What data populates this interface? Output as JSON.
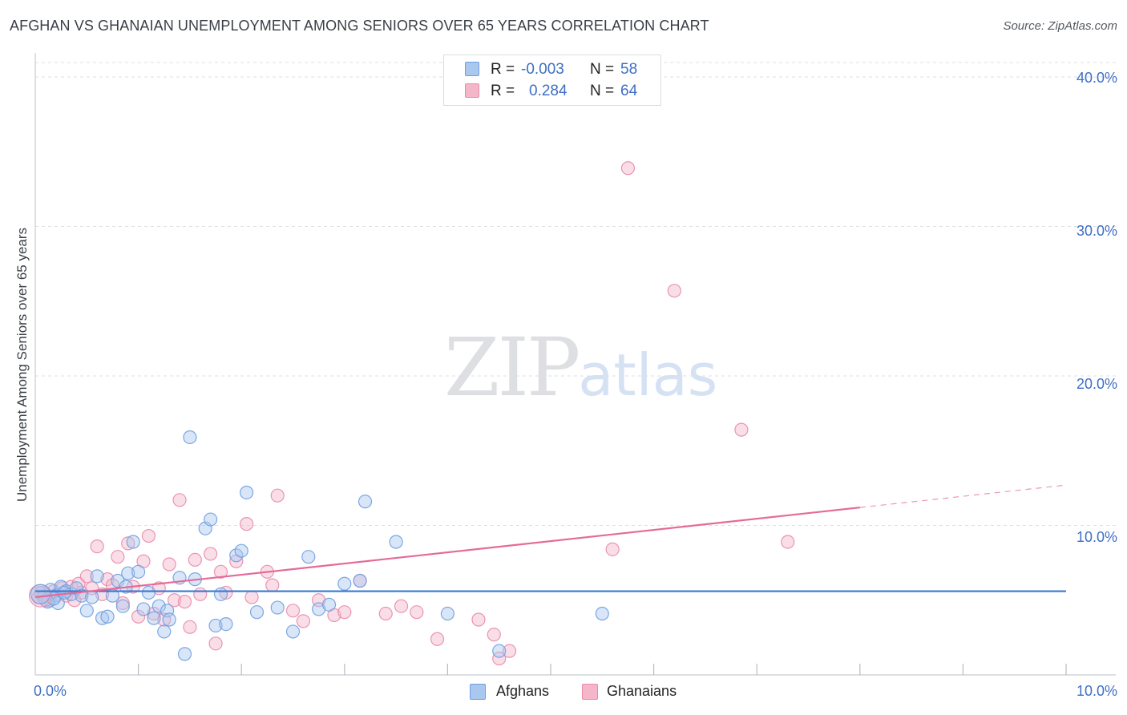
{
  "header": {
    "title": "AFGHAN VS GHANAIAN UNEMPLOYMENT AMONG SENIORS OVER 65 YEARS CORRELATION CHART",
    "source": "Source: ZipAtlas.com"
  },
  "legend": {
    "rows": [
      {
        "r_label": "R =",
        "r_value": "-0.003",
        "n_label": "N =",
        "n_value": "58"
      },
      {
        "r_label": "R =",
        "r_value": "0.284",
        "n_label": "N =",
        "n_value": "64"
      }
    ]
  },
  "watermark": {
    "zip": "ZIP",
    "atlas": "atlas"
  },
  "colors": {
    "afghan_fill": "#a9c7ef",
    "afghan_stroke": "#6f9ee0",
    "afghan_line": "#3a78d0",
    "ghana_fill": "#f5b6ca",
    "ghana_stroke": "#e98aab",
    "ghana_line": "#e56a98",
    "tick_text": "#3f6fc4",
    "grid": "#dcdfe3"
  },
  "chart_data": {
    "type": "scatter",
    "title": "AFGHAN VS GHANAIAN UNEMPLOYMENT AMONG SENIORS OVER 65 YEARS CORRELATION CHART",
    "xlabel": "",
    "ylabel": "Unemployment Among Seniors over 65 years",
    "xlim": [
      0,
      10
    ],
    "ylim": [
      0,
      40
    ],
    "x_tick_labels": [
      "0.0%",
      "10.0%"
    ],
    "y_ticks": [
      10,
      20,
      30,
      40
    ],
    "y_tick_labels": [
      "10.0%",
      "20.0%",
      "30.0%",
      "40.0%"
    ],
    "legend_position": "top-center",
    "series": [
      {
        "name": "Afghans",
        "R": -0.003,
        "N": 58,
        "trend": {
          "x0": 0.0,
          "y0": 5.6,
          "x1": 10.0,
          "y1": 5.6,
          "dashed_from": null
        },
        "points": [
          [
            0.05,
            5.5
          ],
          [
            0.08,
            5.2
          ],
          [
            0.1,
            5.0
          ],
          [
            0.15,
            5.7
          ],
          [
            0.2,
            5.3
          ],
          [
            0.22,
            4.8
          ],
          [
            0.25,
            5.9
          ],
          [
            0.3,
            5.6
          ],
          [
            0.35,
            5.4
          ],
          [
            0.4,
            5.8
          ],
          [
            0.45,
            5.3
          ],
          [
            0.5,
            4.3
          ],
          [
            0.55,
            5.2
          ],
          [
            0.6,
            6.6
          ],
          [
            0.65,
            3.8
          ],
          [
            0.7,
            3.9
          ],
          [
            0.75,
            5.3
          ],
          [
            0.8,
            6.3
          ],
          [
            0.85,
            4.6
          ],
          [
            0.88,
            5.9
          ],
          [
            0.9,
            6.8
          ],
          [
            0.95,
            8.9
          ],
          [
            1.0,
            6.9
          ],
          [
            1.05,
            4.4
          ],
          [
            1.1,
            5.5
          ],
          [
            1.15,
            3.8
          ],
          [
            1.2,
            4.6
          ],
          [
            1.25,
            2.9
          ],
          [
            1.28,
            4.3
          ],
          [
            1.3,
            3.7
          ],
          [
            1.4,
            6.5
          ],
          [
            1.45,
            1.4
          ],
          [
            1.5,
            15.9
          ],
          [
            1.55,
            6.4
          ],
          [
            1.65,
            9.8
          ],
          [
            1.7,
            10.4
          ],
          [
            1.75,
            3.3
          ],
          [
            1.8,
            5.4
          ],
          [
            1.85,
            3.4
          ],
          [
            1.95,
            8.0
          ],
          [
            2.0,
            8.3
          ],
          [
            2.05,
            12.2
          ],
          [
            2.15,
            4.2
          ],
          [
            2.35,
            4.5
          ],
          [
            2.5,
            2.9
          ],
          [
            2.65,
            7.9
          ],
          [
            2.75,
            4.4
          ],
          [
            2.85,
            4.7
          ],
          [
            3.0,
            6.1
          ],
          [
            3.15,
            6.3
          ],
          [
            3.2,
            11.6
          ],
          [
            3.5,
            8.9
          ],
          [
            4.0,
            4.1
          ],
          [
            4.5,
            1.6
          ],
          [
            5.5,
            4.1
          ],
          [
            0.12,
            4.9
          ],
          [
            0.18,
            5.1
          ],
          [
            0.28,
            5.5
          ]
        ]
      },
      {
        "name": "Ghanaians",
        "R": 0.284,
        "N": 64,
        "trend": {
          "x0": 0.0,
          "y0": 5.2,
          "x1": 10.0,
          "y1": 12.7,
          "dashed_from": 8.0
        },
        "points": [
          [
            0.03,
            5.2
          ],
          [
            0.06,
            5.5
          ],
          [
            0.1,
            5.3
          ],
          [
            0.14,
            5.0
          ],
          [
            0.18,
            5.6
          ],
          [
            0.22,
            5.4
          ],
          [
            0.26,
            5.8
          ],
          [
            0.3,
            5.3
          ],
          [
            0.35,
            5.9
          ],
          [
            0.38,
            5.0
          ],
          [
            0.42,
            6.1
          ],
          [
            0.45,
            5.5
          ],
          [
            0.5,
            6.6
          ],
          [
            0.55,
            5.8
          ],
          [
            0.6,
            8.6
          ],
          [
            0.65,
            5.4
          ],
          [
            0.7,
            6.4
          ],
          [
            0.75,
            6.0
          ],
          [
            0.8,
            7.9
          ],
          [
            0.85,
            4.8
          ],
          [
            0.9,
            8.8
          ],
          [
            0.95,
            5.9
          ],
          [
            1.0,
            3.9
          ],
          [
            1.05,
            7.6
          ],
          [
            1.1,
            9.3
          ],
          [
            1.15,
            4.1
          ],
          [
            1.2,
            5.8
          ],
          [
            1.25,
            3.7
          ],
          [
            1.3,
            7.4
          ],
          [
            1.35,
            5.0
          ],
          [
            1.4,
            11.7
          ],
          [
            1.45,
            4.9
          ],
          [
            1.5,
            3.2
          ],
          [
            1.55,
            7.7
          ],
          [
            1.6,
            5.4
          ],
          [
            1.7,
            8.1
          ],
          [
            1.75,
            2.1
          ],
          [
            1.8,
            6.9
          ],
          [
            1.85,
            5.5
          ],
          [
            1.95,
            7.6
          ],
          [
            2.05,
            10.1
          ],
          [
            2.1,
            5.2
          ],
          [
            2.25,
            6.9
          ],
          [
            2.3,
            6.0
          ],
          [
            2.35,
            12.0
          ],
          [
            2.5,
            4.3
          ],
          [
            2.6,
            3.6
          ],
          [
            2.75,
            5.0
          ],
          [
            2.9,
            4.0
          ],
          [
            3.0,
            4.2
          ],
          [
            3.15,
            6.3
          ],
          [
            3.4,
            4.1
          ],
          [
            3.55,
            4.6
          ],
          [
            3.7,
            4.2
          ],
          [
            3.9,
            2.4
          ],
          [
            4.3,
            3.7
          ],
          [
            4.45,
            2.7
          ],
          [
            4.5,
            1.1
          ],
          [
            4.6,
            1.6
          ],
          [
            5.6,
            8.4
          ],
          [
            5.75,
            33.9
          ],
          [
            6.2,
            25.7
          ],
          [
            6.85,
            16.4
          ],
          [
            7.3,
            8.9
          ]
        ]
      }
    ]
  },
  "bottom_legend": {
    "items": [
      {
        "label": "Afghans"
      },
      {
        "label": "Ghanaians"
      }
    ]
  }
}
